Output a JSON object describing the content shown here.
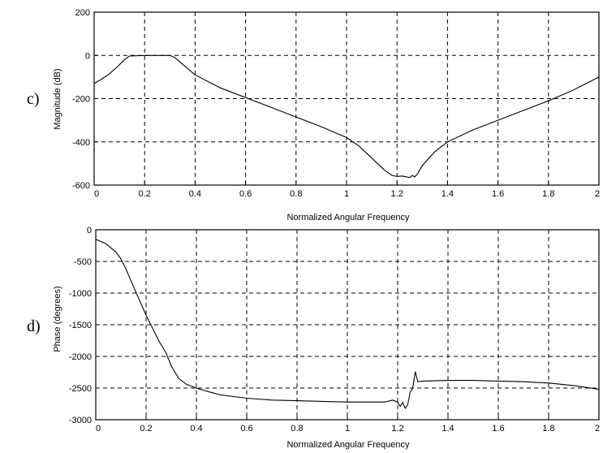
{
  "chart_data": [
    {
      "panel_label": "c)",
      "type": "line",
      "xlabel": "Normalized Angular Frequency",
      "ylabel": "Magnitude (dB)",
      "xlim": [
        0,
        2
      ],
      "ylim": [
        -600,
        200
      ],
      "xticks": [
        0,
        0.2,
        0.4,
        0.6,
        0.8,
        1,
        1.2,
        1.4,
        1.6,
        1.8,
        2
      ],
      "xtick_labels": [
        "0",
        "0.2",
        "0.4",
        "0.6",
        "0.8",
        "1",
        "1.2",
        "1.4",
        "1.6",
        "1.8",
        "2"
      ],
      "yticks": [
        -600,
        -400,
        -200,
        0,
        200
      ],
      "ytick_labels": [
        "-600",
        "-400",
        "-200",
        "0",
        "200"
      ],
      "grid": true,
      "series": [
        {
          "x": [
            0,
            0.03,
            0.06,
            0.09,
            0.12,
            0.14,
            0.2,
            0.25,
            0.3,
            0.32,
            0.35,
            0.4,
            0.5,
            0.6,
            0.7,
            0.8,
            0.9,
            1.0,
            1.05,
            1.1,
            1.15,
            1.18,
            1.2,
            1.22,
            1.25,
            1.26,
            1.27,
            1.28,
            1.3,
            1.35,
            1.4,
            1.5,
            1.6,
            1.7,
            1.8,
            1.9,
            2.0
          ],
          "y": [
            -130,
            -110,
            -85,
            -55,
            -20,
            -3,
            0,
            0,
            0,
            -10,
            -40,
            -90,
            -150,
            -195,
            -240,
            -285,
            -330,
            -380,
            -420,
            -475,
            -530,
            -555,
            -560,
            -558,
            -565,
            -555,
            -562,
            -550,
            -510,
            -445,
            -400,
            -345,
            -300,
            -255,
            -210,
            -160,
            -100
          ]
        }
      ]
    },
    {
      "panel_label": "d)",
      "type": "line",
      "xlabel": "Normalized Angular Frequency",
      "ylabel": "Phase (degrees)",
      "xlim": [
        0,
        2
      ],
      "ylim": [
        -3000,
        0
      ],
      "xticks": [
        0,
        0.2,
        0.4,
        0.6,
        0.8,
        1,
        1.2,
        1.4,
        1.6,
        1.8,
        2
      ],
      "xtick_labels": [
        "0",
        "0.2",
        "0.4",
        "0.6",
        "0.8",
        "1",
        "1.2",
        "1.4",
        "1.6",
        "1.8",
        "2"
      ],
      "yticks": [
        -3000,
        -2500,
        -2000,
        -1500,
        -1000,
        -500,
        0
      ],
      "ytick_labels": [
        "-3000",
        "-2500",
        "-2000",
        "-1500",
        "-1000",
        "-500",
        "0"
      ],
      "grid": true,
      "series": [
        {
          "x": [
            0,
            0.04,
            0.08,
            0.1,
            0.12,
            0.15,
            0.2,
            0.25,
            0.28,
            0.3,
            0.33,
            0.36,
            0.4,
            0.45,
            0.5,
            0.6,
            0.7,
            0.8,
            0.9,
            1.0,
            1.1,
            1.15,
            1.18,
            1.2,
            1.21,
            1.22,
            1.23,
            1.24,
            1.25,
            1.26,
            1.27,
            1.28,
            1.3,
            1.4,
            1.5,
            1.6,
            1.7,
            1.8,
            1.9,
            2.0
          ],
          "y": [
            -150,
            -220,
            -350,
            -460,
            -620,
            -900,
            -1350,
            -1750,
            -1950,
            -2150,
            -2350,
            -2440,
            -2500,
            -2560,
            -2610,
            -2660,
            -2690,
            -2700,
            -2710,
            -2720,
            -2720,
            -2720,
            -2690,
            -2720,
            -2790,
            -2730,
            -2820,
            -2760,
            -2560,
            -2500,
            -2240,
            -2400,
            -2390,
            -2380,
            -2380,
            -2390,
            -2400,
            -2420,
            -2460,
            -2520
          ]
        }
      ]
    }
  ]
}
